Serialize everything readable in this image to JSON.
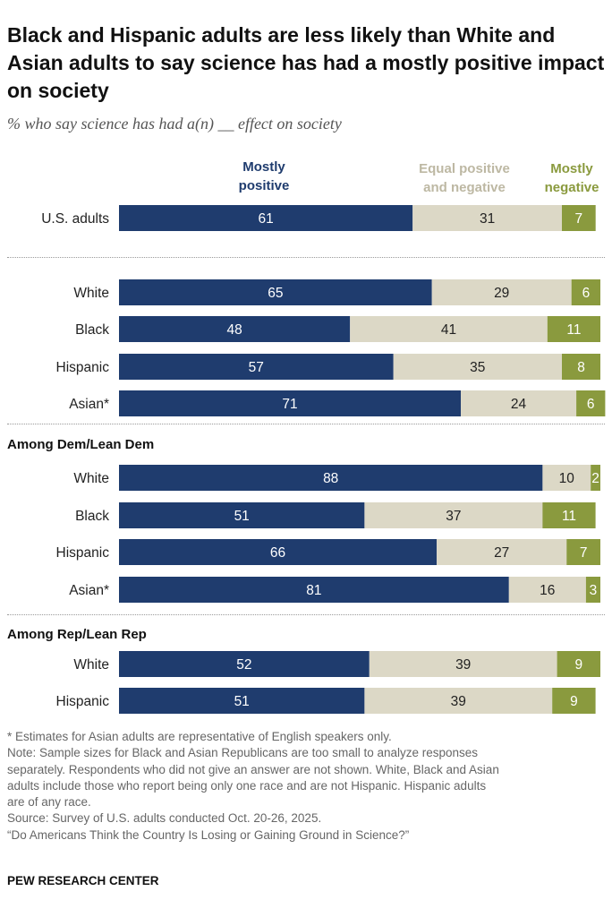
{
  "title": "Black and Hispanic adults are less likely than White and Asian adults to say science has had a mostly positive impact on society",
  "subtitle": "% who say science has had a(n) __ effect on society",
  "legend": {
    "positive_line1": "Mostly",
    "positive_line2": "positive",
    "equal_line1": "Equal positive",
    "equal_line2": "and negative",
    "negative_line1": "Mostly",
    "negative_line2": "negative"
  },
  "colors": {
    "positive": "#1f3c6e",
    "equal": "#dcd8c6",
    "negative": "#8a9a3e",
    "positive_text": "#ffffff",
    "equal_text": "#222222",
    "negative_text": "#ffffff"
  },
  "groups": {
    "dem_heading": "Among Dem/Lean Dem",
    "rep_heading": "Among Rep/Lean Rep"
  },
  "chart_data": {
    "type": "bar",
    "orientation": "horizontal",
    "stacked": true,
    "xlim": [
      0,
      100
    ],
    "series_names": [
      "Mostly positive",
      "Equal positive and negative",
      "Mostly negative"
    ],
    "rows": [
      {
        "label": "U.S. adults",
        "group": "",
        "values": [
          61,
          31,
          7
        ]
      },
      {
        "label": "White",
        "group": "",
        "values": [
          65,
          29,
          6
        ]
      },
      {
        "label": "Black",
        "group": "",
        "values": [
          48,
          41,
          11
        ]
      },
      {
        "label": "Hispanic",
        "group": "",
        "values": [
          57,
          35,
          8
        ]
      },
      {
        "label": "Asian*",
        "group": "",
        "values": [
          71,
          24,
          6
        ]
      },
      {
        "label": "White",
        "group": "Among Dem/Lean Dem",
        "values": [
          88,
          10,
          2
        ]
      },
      {
        "label": "Black",
        "group": "Among Dem/Lean Dem",
        "values": [
          51,
          37,
          11
        ]
      },
      {
        "label": "Hispanic",
        "group": "Among Dem/Lean Dem",
        "values": [
          66,
          27,
          7
        ]
      },
      {
        "label": "Asian*",
        "group": "Among Dem/Lean Dem",
        "values": [
          81,
          16,
          3
        ]
      },
      {
        "label": "White",
        "group": "Among Rep/Lean Rep",
        "values": [
          52,
          39,
          9
        ]
      },
      {
        "label": "Hispanic",
        "group": "Among Rep/Lean Rep",
        "values": [
          51,
          39,
          9
        ]
      }
    ]
  },
  "footnotes": {
    "asterisk": "* Estimates for Asian adults are representative of English speakers only.",
    "note_line1": "Note: Sample sizes for Black and Asian Republicans are too small to analyze responses",
    "note_line2": "separately. Respondents who did not give an answer are not shown. White, Black and Asian",
    "note_line3": "adults include those who report being only one race and are not Hispanic. Hispanic adults",
    "note_line4": "are of any race.",
    "source": "Source: Survey of U.S. adults conducted Oct. 20-26, 2025.",
    "report": "“Do Americans Think the Country Is Losing or Gaining Ground in Science?”"
  },
  "brand": "PEW RESEARCH CENTER"
}
